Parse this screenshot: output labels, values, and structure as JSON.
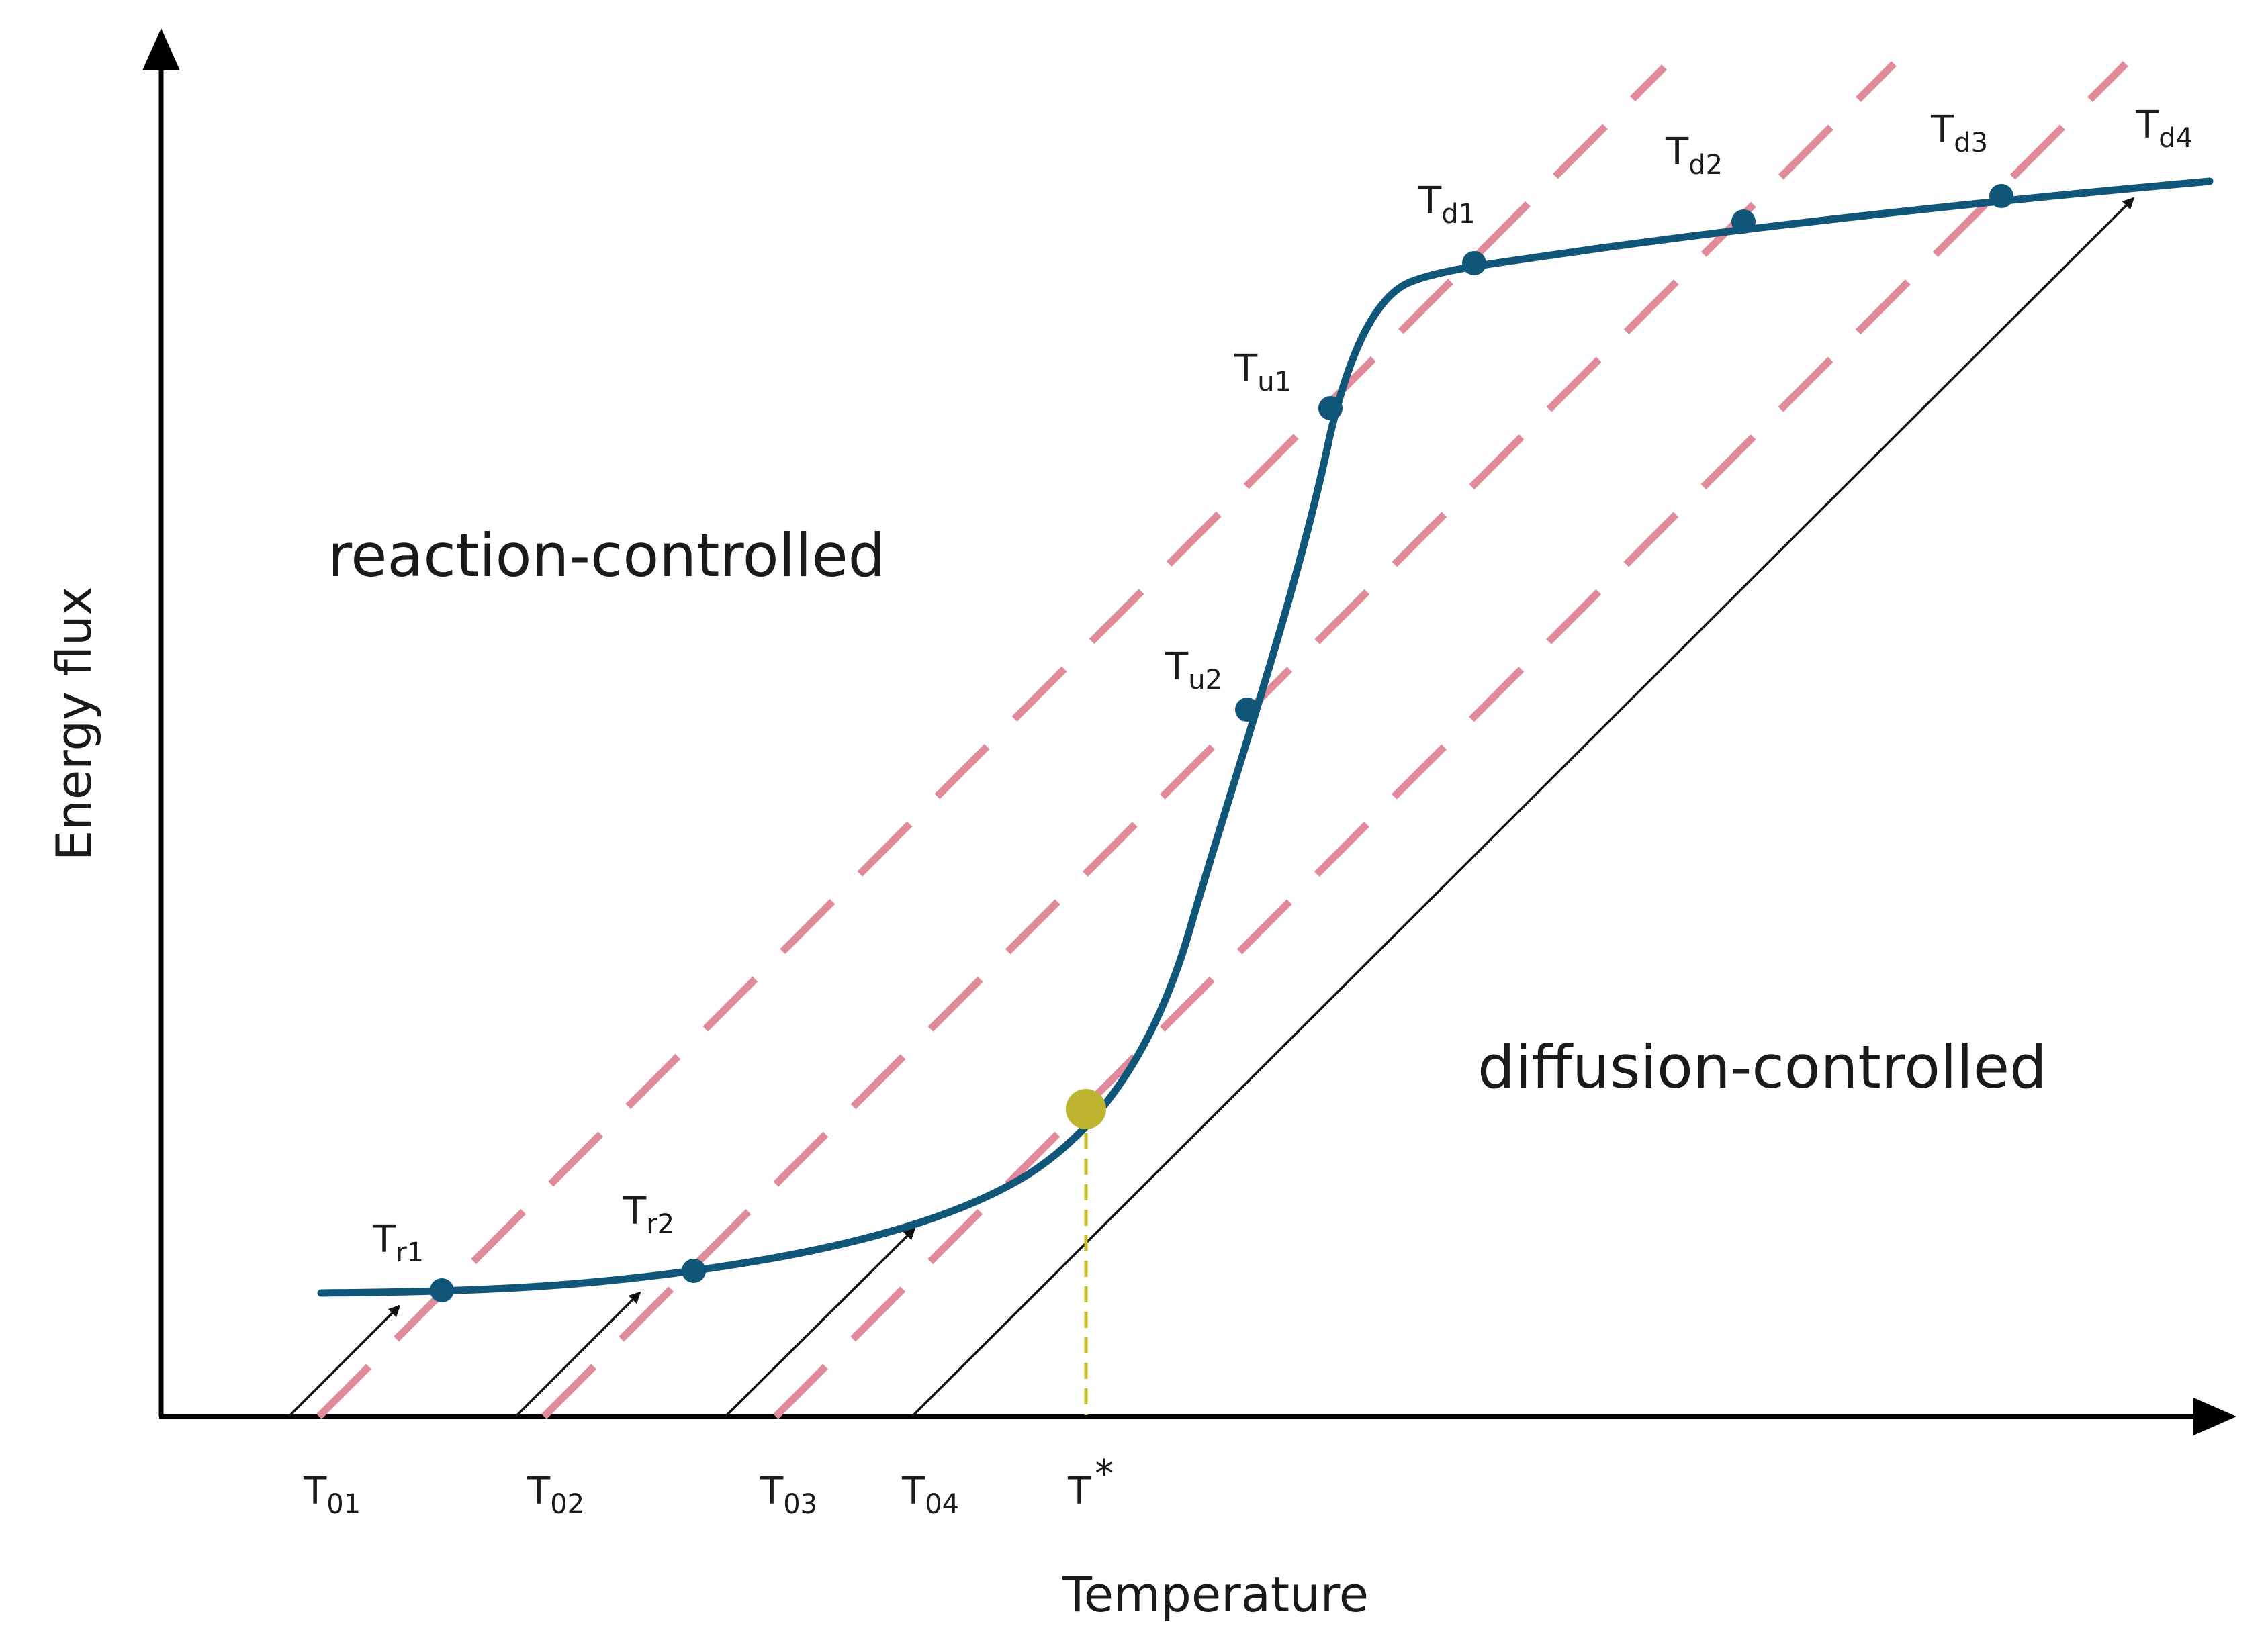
{
  "axes": {
    "x_label": "Temperature",
    "y_label": "Energy flux",
    "axis_color": "#000000"
  },
  "regions": {
    "reaction": "reaction-controlled",
    "diffusion": "diffusion-controlled"
  },
  "ambient_temperatures": [
    {
      "main": "T",
      "sub": "01"
    },
    {
      "main": "T",
      "sub": "02"
    },
    {
      "main": "T",
      "sub": "03"
    },
    {
      "main": "T",
      "sub": "04"
    }
  ],
  "critical_temperature": {
    "main": "T",
    "sup": "*"
  },
  "curve_points": [
    {
      "main": "T",
      "sub": "r1"
    },
    {
      "main": "T",
      "sub": "r2"
    },
    {
      "main": "T",
      "sub": "u2"
    },
    {
      "main": "T",
      "sub": "u1"
    },
    {
      "main": "T",
      "sub": "d1"
    },
    {
      "main": "T",
      "sub": "d2"
    },
    {
      "main": "T",
      "sub": "d3"
    },
    {
      "main": "T",
      "sub": "d4"
    }
  ],
  "colors": {
    "curve": "#0f5678",
    "dashed_lines": "#e08a9a",
    "critical_point": "#bdb52f",
    "critical_dashed": "#c9bf2a",
    "arrows": "#111111"
  }
}
